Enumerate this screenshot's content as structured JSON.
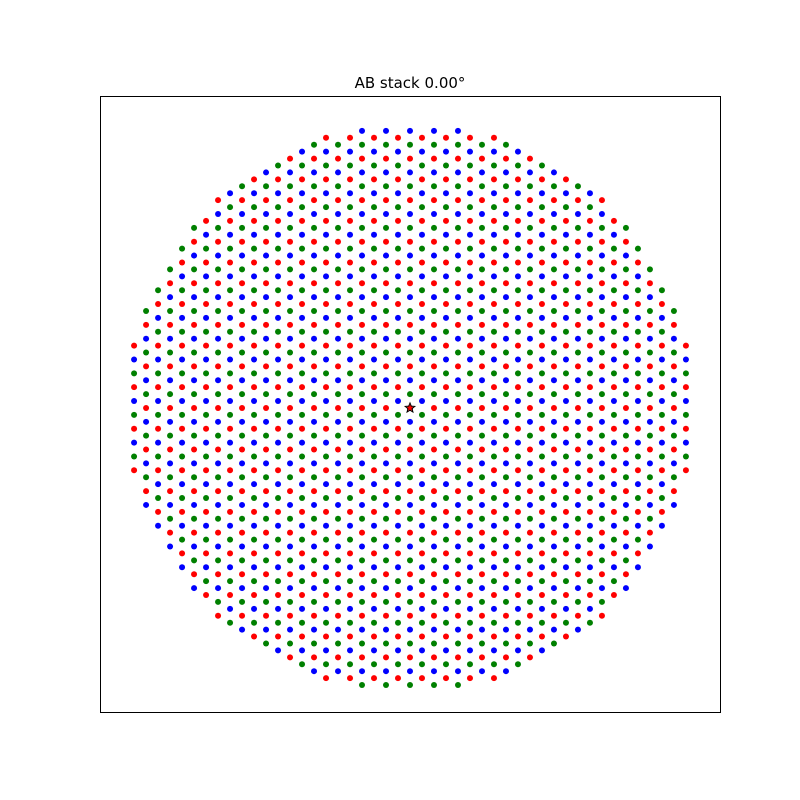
{
  "chart_data": {
    "type": "scatter",
    "title": "AB stack 0.00°",
    "lattice": {
      "a1": [
        1,
        0
      ],
      "a2": [
        0.5,
        0.866
      ],
      "radius": 11.8
    },
    "series": [
      {
        "color": "red",
        "offset": [
          0,
          0
        ]
      },
      {
        "color": "blue",
        "offset": [
          0.5,
          0.2887
        ]
      },
      {
        "color": "green",
        "offset": [
          1,
          0.5774
        ]
      }
    ],
    "center": {
      "x": 0,
      "y": 0,
      "color": "black"
    },
    "xlim": [
      -12.92,
      12.92
    ],
    "ylim": [
      -12.67,
      13
    ]
  }
}
